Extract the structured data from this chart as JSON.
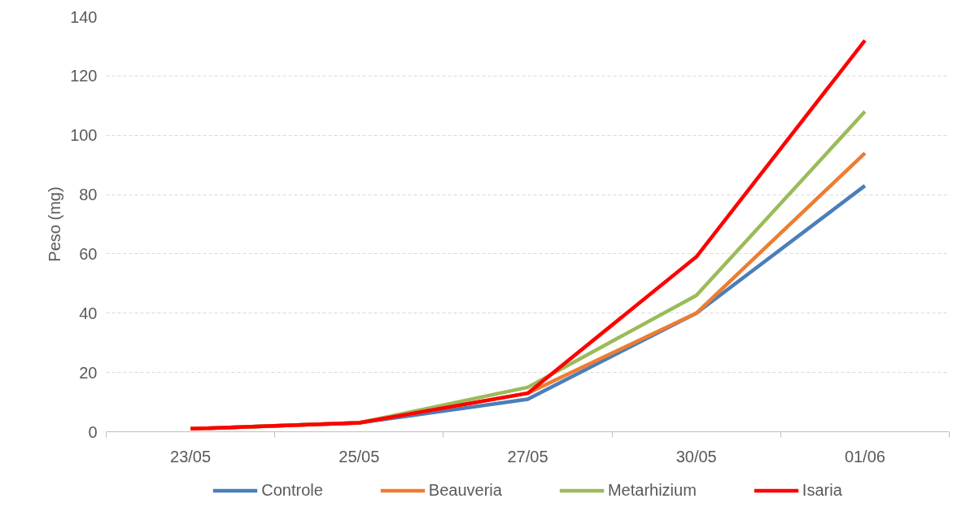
{
  "chart_data": {
    "type": "line",
    "ylabel": "Peso (mg)",
    "categories": [
      "23/05",
      "25/05",
      "27/05",
      "30/05",
      "01/06"
    ],
    "series": [
      {
        "name": "Controle",
        "color": "#4a7ebb",
        "values": [
          1,
          3,
          11,
          40,
          83
        ]
      },
      {
        "name": "Beauveria",
        "color": "#ed7d31",
        "values": [
          1,
          3,
          13,
          40,
          94
        ]
      },
      {
        "name": "Metarhizium",
        "color": "#9bbb59",
        "values": [
          1,
          3,
          15,
          46,
          108
        ]
      },
      {
        "name": "Isaria",
        "color": "#ff0000",
        "values": [
          1,
          3,
          13,
          59,
          132
        ]
      }
    ],
    "ylim": [
      0,
      140
    ],
    "yticks": [
      0,
      20,
      40,
      60,
      80,
      100,
      120,
      140
    ],
    "grid": "y",
    "legend": "bottom",
    "marker": "none",
    "line_style": "solid"
  }
}
